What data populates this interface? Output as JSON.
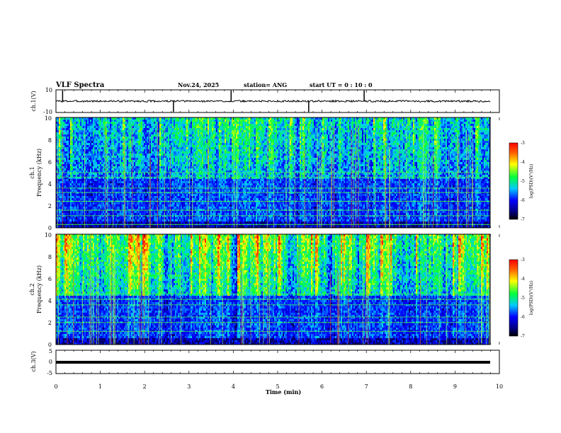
{
  "chart_data": {
    "type": "heatmap",
    "header": {
      "title": "VLF Spectra",
      "date": "Nov.24, 2025",
      "station": "station= ANG",
      "start": "start  UT =   0  : 10 : 0"
    },
    "xaxis": {
      "label": "Time  (min)",
      "range": [
        0,
        10
      ],
      "ticks": [
        "0",
        "1",
        "2",
        "3",
        "4",
        "5",
        "6",
        "7",
        "8",
        "9",
        "10"
      ]
    },
    "panels": [
      {
        "id": "ch1-waveform",
        "type": "line",
        "ylabel": "ch.1(V)",
        "ylim": [
          -10,
          10
        ],
        "tick_labels": [
          "10",
          "-10"
        ],
        "baseline": 0,
        "spikes_min": [
          0.15,
          2.65,
          3.95,
          5.7,
          6.95
        ]
      },
      {
        "id": "ch1-spectrogram",
        "type": "heatmap",
        "ylabel_ch": "ch.1",
        "ylabel_freq": "Frequency  (kHz)",
        "ylim": [
          0,
          10
        ],
        "tick_labels": [
          "0",
          "2",
          "4",
          "6",
          "8",
          "10"
        ],
        "activity": 0.55,
        "seed": 7,
        "lines_khz": [
          0.3,
          1.1,
          1.6,
          2.4,
          3.2,
          3.6,
          4.6,
          5.0
        ],
        "colorbar": {
          "ticks": [
            "-3",
            "-4",
            "-5",
            "-6",
            "-7"
          ],
          "label": "log(PSD)(V²/Hz)",
          "range": [
            -7,
            -3
          ]
        }
      },
      {
        "id": "ch2-spectrogram",
        "type": "heatmap",
        "ylabel_ch": "ch.2",
        "ylabel_freq": "Frequency  (kHz)",
        "ylim": [
          0,
          10
        ],
        "tick_labels": [
          "0",
          "2",
          "4",
          "6",
          "8",
          "10"
        ],
        "activity": 0.85,
        "seed": 19,
        "lines_khz": [
          1.2,
          2.0,
          2.5,
          3.6,
          4.1,
          4.6
        ],
        "colorbar": {
          "ticks": [
            "-3",
            "-4",
            "-5",
            "-6",
            "-7"
          ],
          "label": "log(PSD)(V²/Hz)",
          "range": [
            -7,
            -3
          ]
        }
      },
      {
        "id": "ch3-waveform",
        "type": "line",
        "ylabel": "ch.3(V)",
        "ylim": [
          -5,
          5
        ],
        "tick_labels": [
          "5",
          "0",
          "-5"
        ],
        "baseline": -2
      }
    ]
  }
}
